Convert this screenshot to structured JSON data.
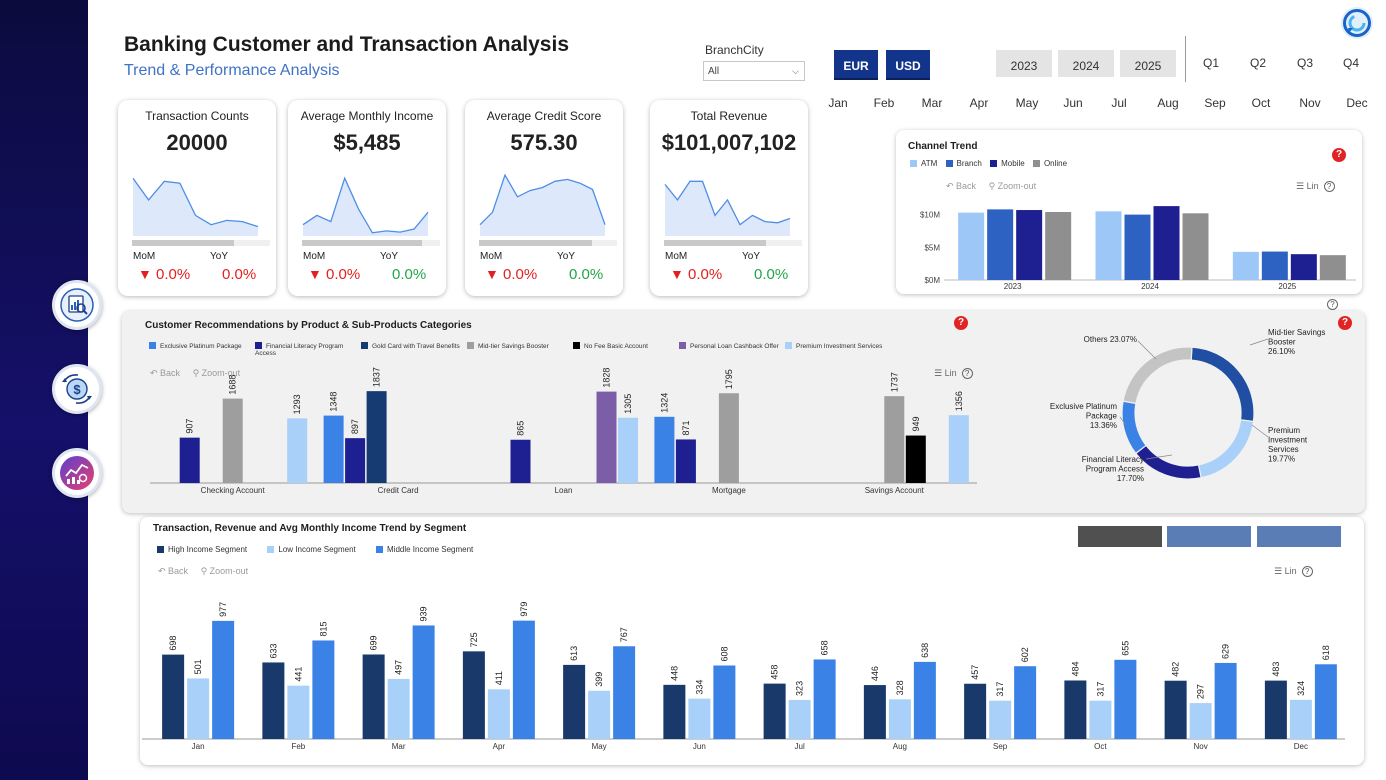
{
  "header": {
    "title": "Banking Customer and Transaction Analysis",
    "subtitle": "Trend & Performance Analysis"
  },
  "filters": {
    "branch_label": "BranchCity",
    "branch_value": "All",
    "currencies": [
      "EUR",
      "USD"
    ],
    "years": [
      "2023",
      "2024",
      "2025"
    ],
    "quarters": [
      "Q1",
      "Q2",
      "Q3",
      "Q4"
    ],
    "months": [
      "Jan",
      "Feb",
      "Mar",
      "Apr",
      "May",
      "Jun",
      "Jul",
      "Aug",
      "Sep",
      "Oct",
      "Nov",
      "Dec"
    ]
  },
  "kpis": [
    {
      "title": "Transaction Counts",
      "value": "20000",
      "mom_label": "MoM",
      "yoy_label": "YoY",
      "mom": "0.0%",
      "yoy": "0.0%",
      "yoy_color": "red",
      "progress": 0.74,
      "trend": [
        0.9,
        0.55,
        0.85,
        0.82,
        0.3,
        0.15,
        0.22,
        0.2,
        0.12
      ]
    },
    {
      "title": "Average Monthly Income",
      "value": "$5,485",
      "mom_label": "MoM",
      "yoy_label": "YoY",
      "mom": "0.0%",
      "yoy": "0.0%",
      "yoy_color": "green",
      "progress": 0.87,
      "trend": [
        0.15,
        0.3,
        0.2,
        0.9,
        0.4,
        0.02,
        0.05,
        0.03,
        0.08,
        0.35
      ]
    },
    {
      "title": "Average Credit Score",
      "value": "575.30",
      "mom_label": "MoM",
      "yoy_label": "YoY",
      "mom": "0.0%",
      "yoy": "0.0%",
      "yoy_color": "green",
      "progress": 0.82,
      "trend": [
        0.15,
        0.35,
        0.95,
        0.6,
        0.7,
        0.75,
        0.85,
        0.88,
        0.82,
        0.72,
        0.15
      ]
    },
    {
      "title": "Total Revenue",
      "value": "$101,007,102",
      "mom_label": "MoM",
      "yoy_label": "YoY",
      "mom": "0.0%",
      "yoy": "0.0%",
      "yoy_color": "green",
      "progress": 0.74,
      "trend": [
        0.8,
        0.55,
        0.85,
        0.85,
        0.3,
        0.55,
        0.15,
        0.3,
        0.2,
        0.18,
        0.25
      ]
    }
  ],
  "icons": {
    "nav": [
      "analytics-magnifier-icon",
      "currency-exchange-icon",
      "performance-chart-icon"
    ],
    "logo": "refresh-logo-icon"
  },
  "chart_data": [
    {
      "id": "channel-trend",
      "type": "bar",
      "title": "Channel Trend",
      "categories": [
        "2023",
        "2024",
        "2025"
      ],
      "series": [
        {
          "name": "ATM",
          "color": "#9cc7f7",
          "values": [
            10.3,
            10.5,
            4.3
          ]
        },
        {
          "name": "Branch",
          "color": "#2d62c2",
          "values": [
            10.8,
            10.0,
            4.35
          ]
        },
        {
          "name": "Mobile",
          "color": "#1e1f91",
          "values": [
            10.7,
            11.3,
            3.95
          ]
        },
        {
          "name": "Online",
          "color": "#8f8f8f",
          "values": [
            10.4,
            10.2,
            3.8
          ]
        }
      ],
      "yticks": [
        "$0M",
        "$5M",
        "$10M"
      ],
      "ylim": [
        0,
        13
      ]
    },
    {
      "id": "recommendations",
      "type": "bar",
      "title": "Customer Recommendations by Product & Sub-Products Categories",
      "categories": [
        "Checking Account",
        "Credit Card",
        "Loan",
        "Mortgage",
        "Savings Account"
      ],
      "series": [
        {
          "name": "Exclusive Platinum Package",
          "color": "#3b82e6",
          "values": [
            null,
            1348,
            null,
            1324,
            null
          ]
        },
        {
          "name": "Financial Literacy Program Access",
          "color": "#1e1f91",
          "values": [
            907,
            897,
            865,
            871,
            null
          ]
        },
        {
          "name": "Gold Card with Travel Benefits",
          "color": "#163a72",
          "values": [
            null,
            1837,
            null,
            null,
            null
          ]
        },
        {
          "name": "Mid-tier Savings Booster",
          "color": "#9e9e9e",
          "values": [
            1688,
            null,
            null,
            1795,
            1737
          ]
        },
        {
          "name": "No Fee Basic Account",
          "color": "#000000",
          "values": [
            null,
            null,
            null,
            null,
            949
          ]
        },
        {
          "name": "Personal Loan Cashback Offer",
          "color": "#7b5da8",
          "values": [
            null,
            null,
            1828,
            null,
            null
          ]
        },
        {
          "name": "Premium Investment Services",
          "color": "#a8d0f8",
          "values": [
            1293,
            null,
            1305,
            null,
            1356
          ]
        }
      ],
      "ylim": [
        0,
        2000
      ]
    },
    {
      "id": "recommendation-share",
      "type": "pie",
      "labels": [
        "Mid-tier Savings Booster",
        "Premium Investment Services",
        "Financial Literacy Program Access",
        "Exclusive Platinum Package",
        "Others"
      ],
      "values": [
        26.1,
        19.77,
        17.7,
        13.36,
        23.07
      ],
      "display": [
        [
          "Mid-tier Savings",
          "Booster",
          "26.10%"
        ],
        [
          "Premium",
          "Investment",
          "Services",
          "19.77%"
        ],
        [
          "Financial Literacy",
          "Program Access",
          "17.70%"
        ],
        [
          "Exclusive Platinum",
          "Package",
          "13.36%"
        ],
        [
          "Others 23.07%"
        ]
      ],
      "colors": [
        "#1f4ea3",
        "#a8d0f8",
        "#1e1f91",
        "#3b82e6",
        "#c4c4c4"
      ]
    },
    {
      "id": "segment-trend",
      "type": "bar",
      "title": "Transaction, Revenue and Avg Monthly Income Trend by Segment",
      "categories": [
        "Jan",
        "Feb",
        "Mar",
        "Apr",
        "May",
        "Jun",
        "Jul",
        "Aug",
        "Sep",
        "Oct",
        "Nov",
        "Dec"
      ],
      "series": [
        {
          "name": "High Income Segment",
          "color": "#183969",
          "values": [
            698,
            633,
            699,
            725,
            613,
            448,
            458,
            446,
            457,
            484,
            482,
            483
          ]
        },
        {
          "name": "Low Income Segment",
          "color": "#a8d0f8",
          "values": [
            501,
            441,
            497,
            411,
            399,
            334,
            323,
            328,
            317,
            317,
            297,
            324
          ]
        },
        {
          "name": "Middle Income Segment",
          "color": "#3b82e6",
          "values": [
            977,
            815,
            939,
            979,
            767,
            608,
            658,
            638,
            602,
            655,
            629,
            618
          ]
        }
      ],
      "ylim": [
        0,
        1100
      ]
    }
  ],
  "toolbar": {
    "back": "Back",
    "zoom_out": "Zoom-out",
    "lin": "Lin",
    "help": "?"
  }
}
